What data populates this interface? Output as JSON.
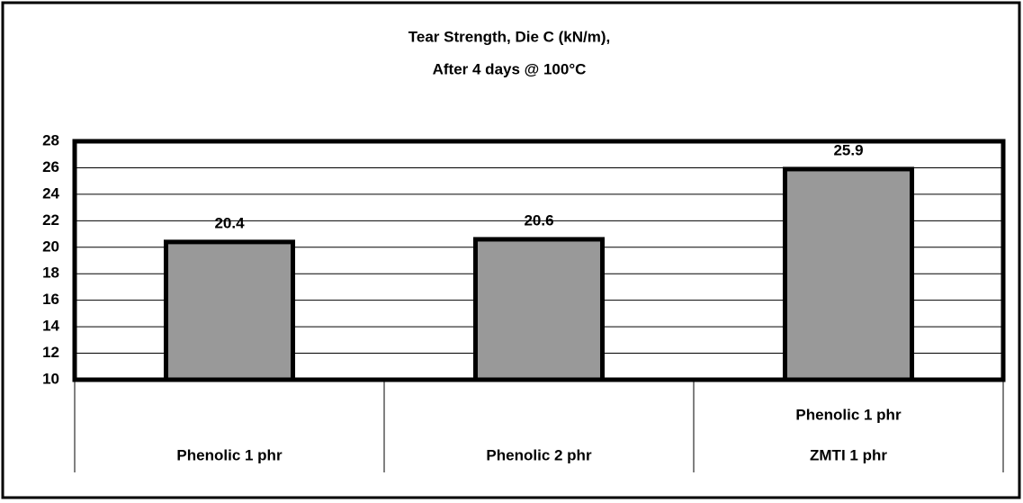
{
  "chart_data": {
    "type": "bar",
    "title": [
      "Tear Strength, Die C (kN/m),",
      "After 4 days @ 100°C"
    ],
    "categories": [
      [
        "Phenolic 1 phr"
      ],
      [
        "Phenolic 2 phr"
      ],
      [
        "Phenolic 1 phr",
        "ZMTI 1 phr"
      ]
    ],
    "values": [
      20.4,
      20.6,
      25.9
    ],
    "color": "#999999",
    "ylim": [
      10,
      28
    ],
    "yticks": [
      10,
      12,
      14,
      16,
      18,
      20,
      22,
      24,
      26,
      28
    ],
    "grid": true
  }
}
